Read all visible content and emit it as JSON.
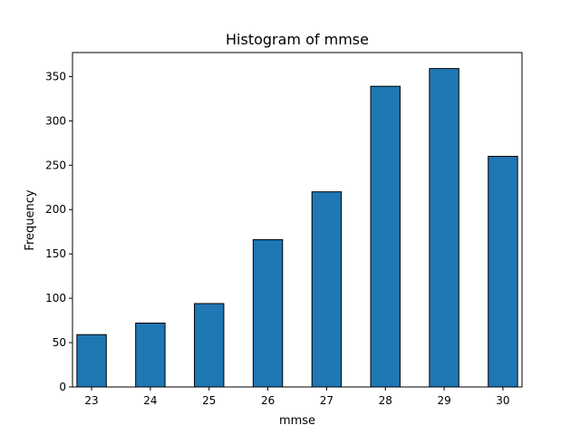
{
  "chart_data": {
    "type": "bar",
    "title": "Histogram of mmse",
    "xlabel": "mmse",
    "ylabel": "Frequency",
    "categories": [
      "23",
      "24",
      "25",
      "26",
      "27",
      "28",
      "29",
      "30"
    ],
    "x": [
      23,
      24,
      25,
      26,
      27,
      28,
      29,
      30
    ],
    "values": [
      59,
      72,
      94,
      166,
      220,
      339,
      359,
      260
    ],
    "bin_width": 0.5,
    "xlim": [
      22.675,
      30.325
    ],
    "ylim": [
      0,
      377
    ],
    "xticks": [
      23,
      24,
      25,
      26,
      27,
      28,
      29,
      30
    ],
    "yticks": [
      0,
      50,
      100,
      150,
      200,
      250,
      300,
      350
    ],
    "grid": false,
    "legend": "none",
    "colors": {
      "bar_fill": "#1f77b4",
      "bar_edge": "#000000",
      "axes": "#000000"
    }
  }
}
